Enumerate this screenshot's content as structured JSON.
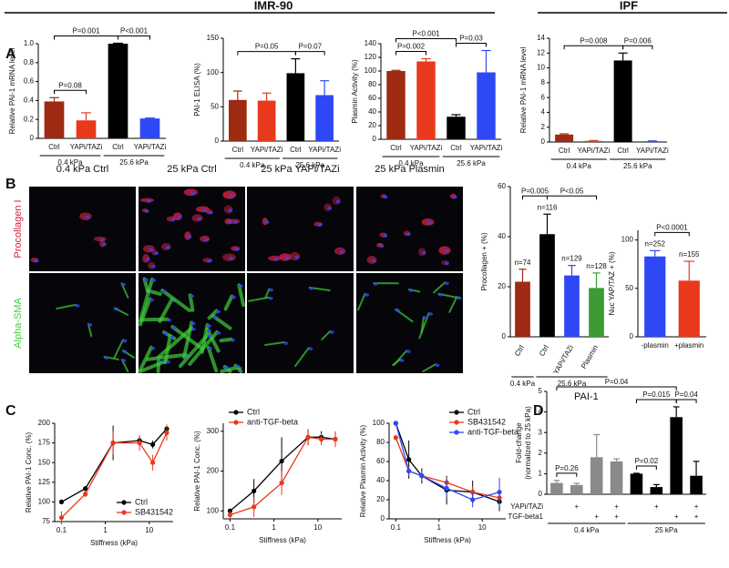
{
  "header": {
    "left": "IMR-90",
    "right": "IPF"
  },
  "panel_labels": [
    "A",
    "B",
    "C",
    "D"
  ],
  "images": {
    "columns": [
      "0.4 kPa Ctrl",
      "25 kPa Ctrl",
      "25 kPa YAPi/TAZi",
      "25 kPa Plasmin"
    ],
    "rows": [
      "Procollagen I",
      "Alpha-SMA"
    ]
  },
  "chart_data": [
    {
      "type": "bar",
      "ylabel": "Relative PAI-1 mRNA level",
      "categories": [
        "Ctrl",
        "YAPi/TAZi",
        "Ctrl",
        "YAPi/TAZi"
      ],
      "values": [
        0.39,
        0.19,
        1.0,
        0.21
      ],
      "errors": [
        0.04,
        0.08,
        0.005,
        0.005
      ],
      "colors": [
        "#9e2a12",
        "#e8391d",
        "#000000",
        "#2f48f5"
      ],
      "ylim": [
        0,
        1
      ],
      "yticks": [
        0,
        0.2,
        0.4,
        0.6,
        0.8,
        {
          "value": 1,
          "label": "1.0"
        }
      ],
      "groups": [
        {
          "label": "0.4 kPa",
          "from": 0,
          "to": 1
        },
        {
          "label": "25.6 kPa",
          "from": 2,
          "to": 3
        }
      ],
      "comparisons": [
        {
          "from": 0,
          "to": 1,
          "label": "P=0.08"
        },
        {
          "from": 2,
          "to": 3,
          "label": "P<0.001"
        },
        {
          "from": 0,
          "to": 2,
          "label": "P=0.001"
        }
      ]
    },
    {
      "type": "bar",
      "ylabel": "PAI-1 ELISA (%)",
      "categories": [
        "Ctrl",
        "YAPi/TAZi",
        "Ctrl",
        "YAPi/TAZi"
      ],
      "values": [
        60,
        59,
        99,
        67
      ],
      "errors": [
        13,
        11,
        21,
        21
      ],
      "colors": [
        "#9e2a12",
        "#e8391d",
        "#000000",
        "#2f48f5"
      ],
      "ylim": [
        0,
        150
      ],
      "yticks": [
        0,
        50,
        100,
        150
      ],
      "groups": [
        {
          "label": "0.4 kPa",
          "from": 0,
          "to": 1
        },
        {
          "label": "25.6 kPa",
          "from": 2,
          "to": 3
        }
      ],
      "comparisons": [
        {
          "from": 2,
          "to": 3,
          "label": "P=0.07"
        },
        {
          "from": 0,
          "to": 2,
          "label": "P=0.05"
        }
      ]
    },
    {
      "type": "bar",
      "ylabel": "Plasmin Activity (%)",
      "categories": [
        "Ctrl",
        "YAPi/TAZi",
        "Ctrl",
        "YAPi/TAZi"
      ],
      "values": [
        100,
        114,
        33,
        98
      ],
      "errors": [
        1,
        4,
        3,
        32
      ],
      "colors": [
        "#9e2a12",
        "#e8391d",
        "#000000",
        "#2f48f5"
      ],
      "ylim": [
        0,
        140
      ],
      "yticks": [
        0,
        20,
        40,
        60,
        80,
        100,
        120,
        140
      ],
      "groups": [
        {
          "label": "0.4 kPa",
          "from": 0,
          "to": 1
        },
        {
          "label": "25.6 kPa",
          "from": 2,
          "to": 3
        }
      ],
      "comparisons": [
        {
          "from": 0,
          "to": 1,
          "label": "P=0.002"
        },
        {
          "from": 2,
          "to": 3,
          "label": "P=0.03"
        },
        {
          "from": 0,
          "to": 2,
          "label": "P<0.001"
        }
      ]
    },
    {
      "type": "bar",
      "ylabel": "Relative PAI-1 mRNA level",
      "categories": [
        "Ctrl",
        "YAPi/TAZi",
        "Ctrl",
        "YAPi/TAZi"
      ],
      "values": [
        1.0,
        0.15,
        11,
        0.1
      ],
      "errors": [
        0.1,
        0.05,
        1,
        0.05
      ],
      "colors": [
        "#9e2a12",
        "#e8391d",
        "#000000",
        "#2f48f5"
      ],
      "ylim": [
        0,
        14
      ],
      "yticks": [
        0,
        2,
        4,
        6,
        8,
        10,
        12,
        14
      ],
      "groups": [
        {
          "label": "0.4 kPa",
          "from": 0,
          "to": 1
        },
        {
          "label": "25.6 kPa",
          "from": 2,
          "to": 3
        }
      ],
      "comparisons": [
        {
          "from": 2,
          "to": 3,
          "label": "P=0.006"
        },
        {
          "from": 0,
          "to": 2,
          "label": "P=0.008"
        }
      ]
    },
    {
      "type": "bar",
      "ylabel": "Procollagen + (%)",
      "categories": [
        "Ctrl",
        "Ctrl",
        "YAPi/TAZi",
        "Plasmin"
      ],
      "values": [
        22,
        41,
        24.5,
        19.5
      ],
      "errors": [
        5,
        8,
        4,
        6
      ],
      "n_labels": [
        "n=74",
        "n=116",
        "n=129",
        "n=128"
      ],
      "colors": [
        "#9e2a12",
        "#000000",
        "#2f48f5",
        "#3b9b35"
      ],
      "ylim": [
        0,
        60
      ],
      "yticks": [
        0,
        20,
        40,
        60
      ],
      "groups": [
        {
          "label": "0.4 kPa",
          "from": 0,
          "to": 0
        },
        {
          "label": "25.6 kPa",
          "from": 1,
          "to": 3
        }
      ],
      "comparisons": [
        {
          "from": 0,
          "to": 1,
          "label": "P=0.005"
        },
        {
          "from": 1,
          "to": 3,
          "label": "P<0.05"
        }
      ]
    },
    {
      "type": "bar",
      "ylabel": "Nuc YAP/TAZ + (%)",
      "categories": [
        "-plasmin",
        "+plasmin"
      ],
      "values": [
        83,
        58
      ],
      "errors": [
        6,
        20
      ],
      "n_labels": [
        "n=252",
        "n=155"
      ],
      "colors": [
        "#2f48f5",
        "#e8391d"
      ],
      "ylim": [
        0,
        110
      ],
      "yticks": [
        0,
        50,
        100
      ],
      "comparisons": [
        {
          "from": 0,
          "to": 1,
          "label": "P<0.0001"
        }
      ]
    },
    {
      "type": "line",
      "ylabel": "Relative PAI-1 Conc. (%)",
      "xlabel": "Stiffness (kPa)",
      "log_x": true,
      "x": [
        0.1,
        0.35,
        1.5,
        6,
        12,
        25
      ],
      "xlim": [
        0.07,
        35
      ],
      "xticks": [
        0.1,
        1,
        10
      ],
      "ylim": [
        75,
        200
      ],
      "yticks": [
        75,
        100,
        125,
        150,
        175,
        200
      ],
      "legend": "lower right",
      "series": [
        {
          "name": "Ctrl",
          "color": "#000000",
          "values": [
            100,
            117,
            175,
            178,
            173,
            193
          ],
          "errors": [
            0,
            3,
            22,
            5,
            5,
            5
          ]
        },
        {
          "name": "SB431542",
          "color": "#e8391d",
          "values": [
            80,
            110,
            175,
            175,
            150,
            188
          ],
          "errors": [
            8,
            4,
            15,
            10,
            10,
            10
          ]
        }
      ]
    },
    {
      "type": "line",
      "ylabel": "Relative PAI-1 Conc. (%)",
      "xlabel": "Stiffness (kPa)",
      "log_x": true,
      "x": [
        0.1,
        0.35,
        1.5,
        6,
        12,
        25
      ],
      "xlim": [
        0.07,
        35
      ],
      "xticks": [
        0.1,
        1,
        10
      ],
      "ylim": [
        80,
        320
      ],
      "yticks": [
        100,
        200,
        300
      ],
      "legend": "upper left",
      "series": [
        {
          "name": "Ctrl",
          "color": "#000000",
          "values": [
            100,
            150,
            225,
            285,
            285,
            280
          ],
          "errors": [
            5,
            30,
            60,
            20,
            15,
            15
          ]
        },
        {
          "name": "anti-TGF-beta",
          "color": "#e8391d",
          "values": [
            90,
            110,
            170,
            285,
            280,
            280
          ],
          "errors": [
            10,
            25,
            30,
            20,
            15,
            20
          ]
        }
      ]
    },
    {
      "type": "line",
      "ylabel": "Relative Plasmin Activity (%)",
      "xlabel": "Stiffness (kPa)",
      "log_x": true,
      "x": [
        0.1,
        0.2,
        0.4,
        1.5,
        6,
        25
      ],
      "xlim": [
        0.07,
        35
      ],
      "xticks": [
        0.1,
        1,
        10
      ],
      "ylim": [
        0,
        100
      ],
      "yticks": [
        0,
        20,
        40,
        60,
        80,
        100
      ],
      "legend": "upper right",
      "series": [
        {
          "name": "Ctrl",
          "color": "#000000",
          "values": [
            100,
            62,
            45,
            30,
            28,
            18
          ],
          "errors": [
            0,
            20,
            8,
            15,
            12,
            10
          ]
        },
        {
          "name": "SB431542",
          "color": "#e8391d",
          "values": [
            85,
            50,
            45,
            38,
            28,
            22
          ],
          "errors": [
            3,
            5,
            5,
            6,
            6,
            6
          ]
        },
        {
          "name": "anti-TGF-beta",
          "color": "#2f48f5",
          "values": [
            100,
            50,
            45,
            32,
            20,
            28
          ],
          "errors": [
            0,
            5,
            5,
            10,
            8,
            15
          ]
        }
      ]
    },
    {
      "type": "bar",
      "title": "PAI-1",
      "ylabel": [
        "Fold-change",
        "(normalized to 25 kPa)"
      ],
      "values": [
        0.55,
        0.45,
        1.8,
        1.6,
        1.0,
        0.35,
        3.75,
        0.9
      ],
      "errors": [
        0.12,
        0.08,
        1.1,
        0.12,
        0.02,
        0.12,
        0.5,
        0.7
      ],
      "colors": [
        "#8a8a8a",
        "#8a8a8a",
        "#8a8a8a",
        "#8a8a8a",
        "#000000",
        "#000000",
        "#000000",
        "#000000"
      ],
      "ylim": [
        0,
        5
      ],
      "yticks": [
        0,
        1,
        2,
        3,
        4,
        5
      ],
      "conditions": [
        {
          "name": "YAPi/TAZi",
          "marks": [
            null,
            "+",
            null,
            "+",
            null,
            "+",
            null,
            "+"
          ]
        },
        {
          "name": "TGF-beta1",
          "marks": [
            null,
            null,
            "+",
            "+",
            null,
            null,
            "+",
            "+"
          ]
        }
      ],
      "groups": [
        {
          "label": "0.4 kPa",
          "from": 0,
          "to": 3
        },
        {
          "label": "25 kPa",
          "from": 4,
          "to": 7
        }
      ],
      "comparisons": [
        {
          "from": 0,
          "to": 1,
          "label": "P=0.26"
        },
        {
          "from": 4,
          "to": 5,
          "label": "P=0.02"
        },
        {
          "from": 6,
          "to": 7,
          "label": "P=0.04"
        },
        {
          "from": 4,
          "to": 6,
          "label": "P=0.015"
        },
        {
          "from": 0,
          "to": 6,
          "label": "P=0.04"
        }
      ]
    }
  ]
}
